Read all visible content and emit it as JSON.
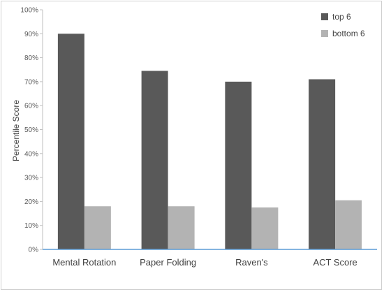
{
  "chart_data": {
    "type": "bar",
    "title": "",
    "xlabel": "",
    "ylabel": "Percentile Score",
    "categories": [
      "Mental Rotation",
      "Paper Folding",
      "Raven's",
      "ACT Score"
    ],
    "series": [
      {
        "name": "top 6",
        "values": [
          0.9,
          0.745,
          0.7,
          0.71
        ],
        "color": "#595959"
      },
      {
        "name": "bottom 6",
        "values": [
          0.18,
          0.18,
          0.175,
          0.205
        ],
        "color": "#b3b3b3"
      }
    ],
    "ylim": [
      0,
      1.0
    ],
    "yticks": [
      "0%",
      "10%",
      "20%",
      "30%",
      "40%",
      "50%",
      "60%",
      "70%",
      "80%",
      "90%",
      "100%"
    ],
    "grid": false,
    "legend_position": "top-right",
    "baseline_color": "#5b9bd5"
  }
}
